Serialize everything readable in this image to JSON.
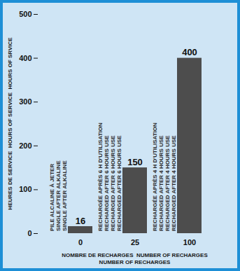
{
  "chart_data": {
    "type": "bar",
    "y_label": "HEURES DE SERVICE  HOURS OF SERVICE  HOURS OF SRVICE",
    "x_label": [
      "NOMBRE DE RECHARGES  NUMBER OF RECHARGES",
      "NUMBER OF RECHARGES"
    ],
    "categories": [
      "0",
      "25",
      "100"
    ],
    "values": [
      16,
      150,
      400
    ],
    "color": "#4d4d4d",
    "ylim": [
      0,
      500
    ],
    "yticks": [
      0,
      100,
      200,
      300,
      400,
      500
    ],
    "grid": false,
    "data_labels": true,
    "annotations": [
      [
        "PILE ALCALINE À JETER",
        "SINGLE AFTER ALKALINE",
        "SINGLE AFTER ALKALINE"
      ],
      [
        "RECHARGÉE APRÈS 6 H D'UTILISATION",
        "RECHARGED AFTER 6 HOURS USE",
        "RECHARGED AFTER 6 HOURS USE",
        "RECHARGED AFTER 6 HOURS USE"
      ],
      [
        "RECHARGÉE APRÈS 4 H D'UTILISATION",
        "RECHARGED AFTER 4 HOURS USE",
        "RECHARGED AFTER 4 HOURS USE",
        "RECHARGED AFTER 4 HOURS USE"
      ]
    ]
  }
}
